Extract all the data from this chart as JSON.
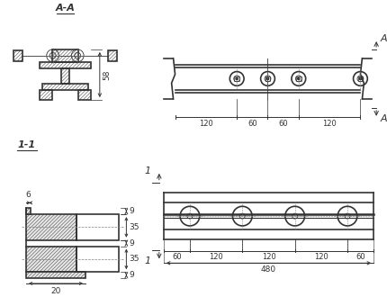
{
  "bg_color": "#ffffff",
  "line_color": "#333333",
  "section_AA_label": "A-A",
  "section_11_label": "1-1",
  "dim_58": "58",
  "dim_6": "6",
  "dim_9a": "9",
  "dim_35a": "35",
  "dim_9b": "9",
  "dim_35b": "35",
  "dim_9c": "9",
  "dim_20": "20",
  "top_dims": [
    "120",
    "60",
    "60",
    "120"
  ],
  "bot_dims": [
    "60",
    "120",
    "120",
    "120",
    "60"
  ],
  "bot_total": "480",
  "label_A": "A",
  "label_1": "1"
}
